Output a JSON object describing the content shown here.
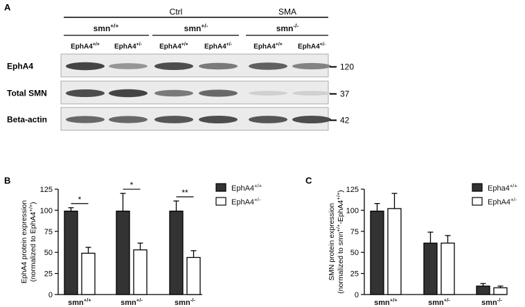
{
  "panel_a": {
    "label": "A",
    "groups": [
      {
        "name": "Ctrl"
      },
      {
        "name": "SMA"
      }
    ],
    "genotypes": [
      {
        "base": "smn",
        "sup": "+/+"
      },
      {
        "base": "smn",
        "sup": "+/-"
      },
      {
        "base": "smn",
        "sup": "-/-"
      }
    ],
    "lanes": [
      {
        "base": "EphA4",
        "sup": "+/+"
      },
      {
        "base": "EphA4",
        "sup": "+/-"
      },
      {
        "base": "EphA4",
        "sup": "+/+"
      },
      {
        "base": "EphA4",
        "sup": "+/-"
      },
      {
        "base": "EphA4",
        "sup": "+/+"
      },
      {
        "base": "EphA4",
        "sup": "+/-"
      }
    ],
    "blots": [
      {
        "label": "EphA4",
        "marker": "120",
        "band_intensity": [
          0.9,
          0.45,
          0.85,
          0.6,
          0.75,
          0.55
        ]
      },
      {
        "label": "Total SMN",
        "marker": "37",
        "band_intensity": [
          0.85,
          0.9,
          0.6,
          0.7,
          0.12,
          0.12
        ]
      },
      {
        "label": "Beta-actin",
        "marker": "42",
        "band_intensity": [
          0.7,
          0.7,
          0.8,
          0.85,
          0.8,
          0.85
        ]
      }
    ]
  },
  "chart_data": [
    {
      "panel": "B",
      "type": "bar",
      "ylabel_line1": "EphA4 protein expression",
      "ylabel_line2_base": "(normalized to EphA4",
      "ylabel_line2_sup": "+/+",
      "ylabel_line2_end": ")",
      "ylim": [
        0,
        125
      ],
      "yticks": [
        "0",
        "25",
        "50",
        "75",
        "100",
        "125"
      ],
      "categories": [
        {
          "base": "smn",
          "sup": "+/+"
        },
        {
          "base": "smn",
          "sup": "+/-"
        },
        {
          "base": "smn",
          "sup": "-/-"
        }
      ],
      "series": [
        {
          "name_base": "EphA4",
          "name_sup": "+/+",
          "fill": "#333333",
          "values": [
            99,
            99,
            99
          ],
          "errors": [
            4,
            21,
            12
          ]
        },
        {
          "name_base": "EphA4",
          "name_sup": "+/-",
          "fill": "#ffffff",
          "values": [
            49,
            53,
            44
          ],
          "errors": [
            7,
            8,
            8
          ]
        }
      ],
      "significance": [
        "*",
        "*",
        "**"
      ]
    },
    {
      "panel": "C",
      "type": "bar",
      "ylabel_line1": "SMN protein expression",
      "ylabel_line2_base": "(normalized to smn",
      "ylabel_line2_sup": "+/+",
      "ylabel_line2_mid": "-EphA4",
      "ylabel_line2_sup2": "+/+",
      "ylabel_line2_end": ")",
      "ylim": [
        0,
        125
      ],
      "yticks": [
        "0",
        "25",
        "50",
        "75",
        "100",
        "125"
      ],
      "categories": [
        {
          "base": "smn",
          "sup": "+/+"
        },
        {
          "base": "smn",
          "sup": "+/-"
        },
        {
          "base": "smn",
          "sup": "-/-"
        }
      ],
      "series": [
        {
          "name_base": "Epha4",
          "name_sup": "+/+",
          "fill": "#333333",
          "values": [
            99,
            61,
            10
          ],
          "errors": [
            9,
            13,
            3
          ]
        },
        {
          "name_base": "EphA4",
          "name_sup": "+/-",
          "fill": "#ffffff",
          "values": [
            102,
            61,
            8
          ],
          "errors": [
            18,
            9,
            2
          ]
        }
      ],
      "significance": []
    }
  ]
}
